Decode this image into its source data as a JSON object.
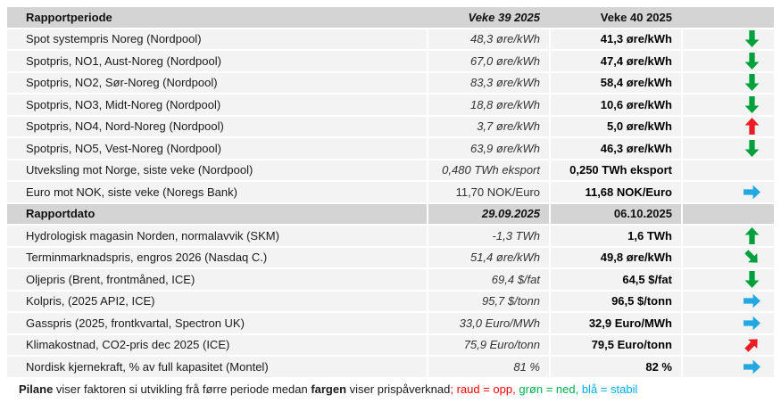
{
  "table": {
    "rows": [
      {
        "type": "header",
        "label": "Rapportperiode",
        "w39": "Veke 39 2025",
        "w40": "Veke 40 2025",
        "arrow": null
      },
      {
        "type": "data",
        "label": "Spot systempris Noreg (Nordpool)",
        "w39": "48,3 øre/kWh",
        "w40": "41,3 øre/kWh",
        "arrow": {
          "dir": "down",
          "color": "arrow_green"
        }
      },
      {
        "type": "data",
        "label": "Spotpris, NO1, Aust-Noreg (Nordpool)",
        "w39": "67,0 øre/kWh",
        "w40": "47,4 øre/kWh",
        "arrow": {
          "dir": "down",
          "color": "arrow_green"
        }
      },
      {
        "type": "data",
        "label": "Spotpris, NO2, Sør-Noreg (Nordpool)",
        "w39": "83,3 øre/kWh",
        "w40": "58,4 øre/kWh",
        "arrow": {
          "dir": "down",
          "color": "arrow_green"
        }
      },
      {
        "type": "data",
        "label": "Spotpris, NO3, Midt-Noreg (Nordpool)",
        "w39": "18,8 øre/kWh",
        "w40": "10,6 øre/kWh",
        "arrow": {
          "dir": "down",
          "color": "arrow_green"
        }
      },
      {
        "type": "data",
        "label": "Spotpris, NO4, Nord-Noreg (Nordpool)",
        "w39": "3,7 øre/kWh",
        "w40": "5,0 øre/kWh",
        "arrow": {
          "dir": "up",
          "color": "arrow_red"
        }
      },
      {
        "type": "data",
        "label": "Spotpris, NO5, Vest-Noreg (Nordpool)",
        "w39": "63,9 øre/kWh",
        "w40": "46,3 øre/kWh",
        "arrow": {
          "dir": "down",
          "color": "arrow_green"
        }
      },
      {
        "type": "data",
        "label": "Utveksling mot Norge, siste veke (Nordpool)",
        "w39": "0,480 TWh eksport",
        "w40": "0,250 TWh eksport",
        "arrow": null
      },
      {
        "type": "data",
        "label": "Euro mot NOK, siste veke (Noregs Bank)",
        "w39": "11,70 NOK/Euro",
        "w40": "11,68 NOK/Euro",
        "arrow": {
          "dir": "right",
          "color": "arrow_blue"
        },
        "w39_italic": false
      },
      {
        "type": "subheader",
        "label": "Rapportdato",
        "w39": "29.09.2025",
        "w40": "06.10.2025",
        "arrow": null
      },
      {
        "type": "data",
        "label": "Hydrologisk magasin Norden, normalavvik (SKM)",
        "w39": "-1,3 TWh",
        "w40": "1,6 TWh",
        "arrow": {
          "dir": "up",
          "color": "arrow_green"
        }
      },
      {
        "type": "data",
        "label": "Terminmarknadspris, engros 2026 (Nasdaq C.)",
        "w39": "51,4 øre/kWh",
        "w40": "49,8 øre/kWh",
        "arrow": {
          "dir": "down-right",
          "color": "arrow_green"
        }
      },
      {
        "type": "data",
        "label": "Oljepris (Brent, frontmåned, ICE)",
        "w39": "69,4 $/fat",
        "w40": "64,5 $/fat",
        "arrow": {
          "dir": "down",
          "color": "arrow_green"
        }
      },
      {
        "type": "data",
        "label": "Kolpris, (2025 API2, ICE)",
        "w39": "95,7 $/tonn",
        "w40": "96,5 $/tonn",
        "arrow": {
          "dir": "right",
          "color": "arrow_blue"
        }
      },
      {
        "type": "data",
        "label": "Gasspris (2025, frontkvartal, Spectron UK)",
        "w39": "33,0 Euro/MWh",
        "w40": "32,9 Euro/MWh",
        "arrow": {
          "dir": "right",
          "color": "arrow_blue"
        }
      },
      {
        "type": "data",
        "label": "Klimakostnad, CO2-pris dec 2025 (ICE)",
        "w39": "75,9 Euro/tonn",
        "w40": "79,5 Euro/tonn",
        "arrow": {
          "dir": "up-right",
          "color": "arrow_red"
        }
      },
      {
        "type": "data",
        "label": "Nordisk kjernekraft, % av full kapasitet (Montel)",
        "w39": "81 %",
        "w40": "82 %",
        "arrow": {
          "dir": "right",
          "color": "arrow_blue"
        }
      }
    ]
  },
  "footer": {
    "segments": [
      {
        "text": "Pilane",
        "bold": true,
        "color": null
      },
      {
        "text": " viser faktoren si utvikling frå førre periode medan ",
        "bold": false,
        "color": null
      },
      {
        "text": "fargen",
        "bold": true,
        "color": null
      },
      {
        "text": " viser prispåverknad",
        "bold": false,
        "color": null
      },
      {
        "text": "; raud = opp,",
        "bold": false,
        "color": "legend_red"
      },
      {
        "text": " grøn = ned,",
        "bold": false,
        "color": "legend_green"
      },
      {
        "text": " blå = stabil",
        "bold": false,
        "color": "legend_blue"
      }
    ]
  },
  "colors": {
    "arrow_green": "#00A13C",
    "arrow_red": "#EC1C24",
    "arrow_blue": "#22A7E0",
    "legend_red": "#FF0000",
    "legend_green": "#00B050",
    "legend_blue": "#00AEEF"
  }
}
